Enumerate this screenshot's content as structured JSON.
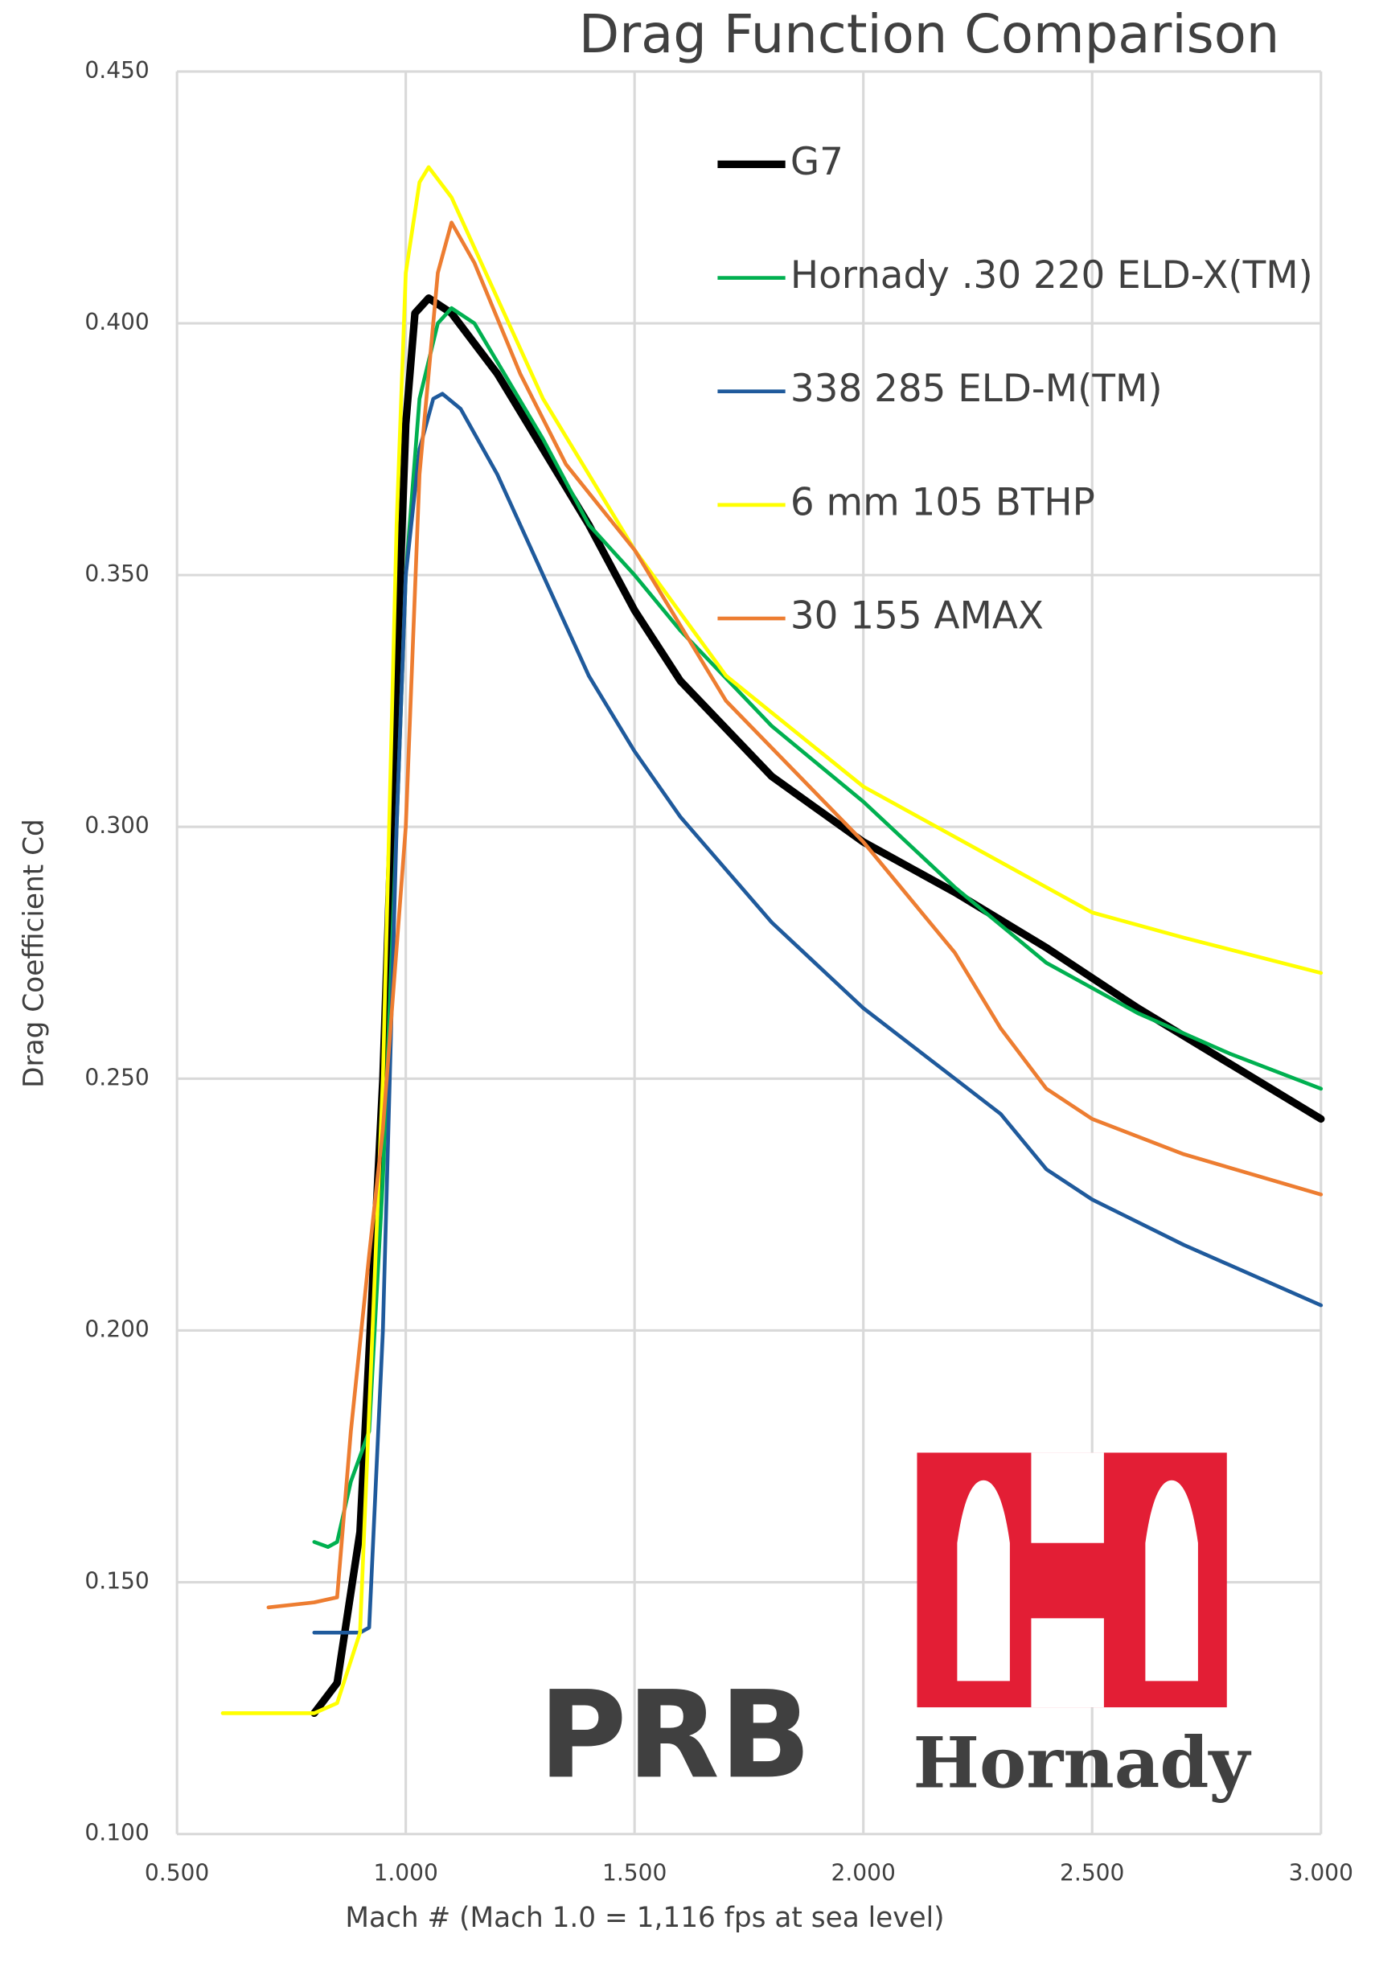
{
  "chart_data": {
    "type": "line",
    "title": "Drag Function Comparison",
    "x_label": "Mach # (Mach 1.0 = 1,116 fps at sea level)",
    "y_label": "Drag Coefficient Cd",
    "xlim": [
      0.5,
      3.0
    ],
    "xticks": [
      {
        "value": 0.5,
        "label": "0.500"
      },
      {
        "value": 1.0,
        "label": "1.000"
      },
      {
        "value": 1.5,
        "label": "1.500"
      },
      {
        "value": 2.0,
        "label": "2.000"
      },
      {
        "value": 2.5,
        "label": "2.500"
      },
      {
        "value": 3.0,
        "label": "3.000"
      }
    ],
    "ylim": [
      0.1,
      0.45
    ],
    "yticks": [
      {
        "value": 0.1,
        "label": "0.100"
      },
      {
        "value": 0.15,
        "label": "0.150"
      },
      {
        "value": 0.2,
        "label": "0.200"
      },
      {
        "value": 0.25,
        "label": "0.250"
      },
      {
        "value": 0.3,
        "label": "0.300"
      },
      {
        "value": 0.35,
        "label": "0.350"
      },
      {
        "value": 0.4,
        "label": "0.400"
      },
      {
        "value": 0.45,
        "label": "0.450"
      }
    ],
    "grid": true,
    "legend": "upper right",
    "series": [
      {
        "name": "G7",
        "color": "#000000",
        "width": 6,
        "x": [
          0.8,
          0.85,
          0.9,
          0.95,
          0.98,
          1.0,
          1.02,
          1.05,
          1.1,
          1.2,
          1.3,
          1.4,
          1.5,
          1.6,
          1.8,
          2.0,
          2.2,
          2.4,
          2.6,
          2.8,
          3.0
        ],
        "values": [
          0.124,
          0.13,
          0.16,
          0.25,
          0.33,
          0.38,
          0.402,
          0.405,
          0.402,
          0.39,
          0.375,
          0.36,
          0.343,
          0.329,
          0.31,
          0.297,
          0.287,
          0.276,
          0.264,
          0.253,
          0.242
        ]
      },
      {
        "name": "Hornady .30 220 ELD-X(TM)",
        "color": "#00b050",
        "width": 3,
        "x": [
          0.8,
          0.83,
          0.85,
          0.88,
          0.92,
          0.95,
          0.98,
          1.0,
          1.03,
          1.07,
          1.1,
          1.15,
          1.3,
          1.4,
          1.5,
          1.6,
          1.8,
          2.0,
          2.2,
          2.4,
          2.6,
          2.8,
          3.0
        ],
        "values": [
          0.158,
          0.157,
          0.158,
          0.17,
          0.18,
          0.23,
          0.3,
          0.35,
          0.385,
          0.4,
          0.403,
          0.4,
          0.377,
          0.36,
          0.35,
          0.339,
          0.32,
          0.305,
          0.288,
          0.273,
          0.263,
          0.255,
          0.248
        ]
      },
      {
        "name": "338 285 ELD-M(TM)",
        "color": "#1f5a9c",
        "width": 3,
        "x": [
          0.8,
          0.9,
          0.92,
          0.95,
          0.98,
          1.0,
          1.03,
          1.06,
          1.08,
          1.12,
          1.2,
          1.3,
          1.4,
          1.5,
          1.6,
          1.8,
          2.0,
          2.2,
          2.3,
          2.4,
          2.5,
          2.7,
          3.0
        ],
        "values": [
          0.14,
          0.14,
          0.141,
          0.2,
          0.3,
          0.35,
          0.375,
          0.385,
          0.386,
          0.383,
          0.37,
          0.35,
          0.33,
          0.315,
          0.302,
          0.281,
          0.264,
          0.25,
          0.243,
          0.232,
          0.226,
          0.217,
          0.205
        ]
      },
      {
        "name": "6 mm 105 BTHP",
        "color": "#ffff00",
        "width": 3,
        "x": [
          0.6,
          0.8,
          0.85,
          0.9,
          0.95,
          0.98,
          1.0,
          1.03,
          1.05,
          1.1,
          1.2,
          1.3,
          1.5,
          1.7,
          2.0,
          2.3,
          2.5,
          2.7,
          3.0
        ],
        "values": [
          0.124,
          0.124,
          0.126,
          0.14,
          0.25,
          0.36,
          0.41,
          0.428,
          0.431,
          0.425,
          0.405,
          0.385,
          0.355,
          0.33,
          0.308,
          0.293,
          0.283,
          0.278,
          0.271
        ]
      },
      {
        "name": "30 155 AMAX",
        "color": "#ed7d31",
        "width": 3,
        "x": [
          0.7,
          0.8,
          0.85,
          0.88,
          0.92,
          0.95,
          1.0,
          1.03,
          1.07,
          1.1,
          1.15,
          1.25,
          1.35,
          1.5,
          1.7,
          2.0,
          2.2,
          2.3,
          2.4,
          2.5,
          2.7,
          3.0
        ],
        "values": [
          0.145,
          0.146,
          0.147,
          0.18,
          0.215,
          0.24,
          0.3,
          0.37,
          0.41,
          0.42,
          0.412,
          0.39,
          0.372,
          0.355,
          0.325,
          0.297,
          0.275,
          0.26,
          0.248,
          0.242,
          0.235,
          0.227
        ]
      }
    ]
  },
  "logos": {
    "left": "PRB",
    "right": "Hornady"
  }
}
